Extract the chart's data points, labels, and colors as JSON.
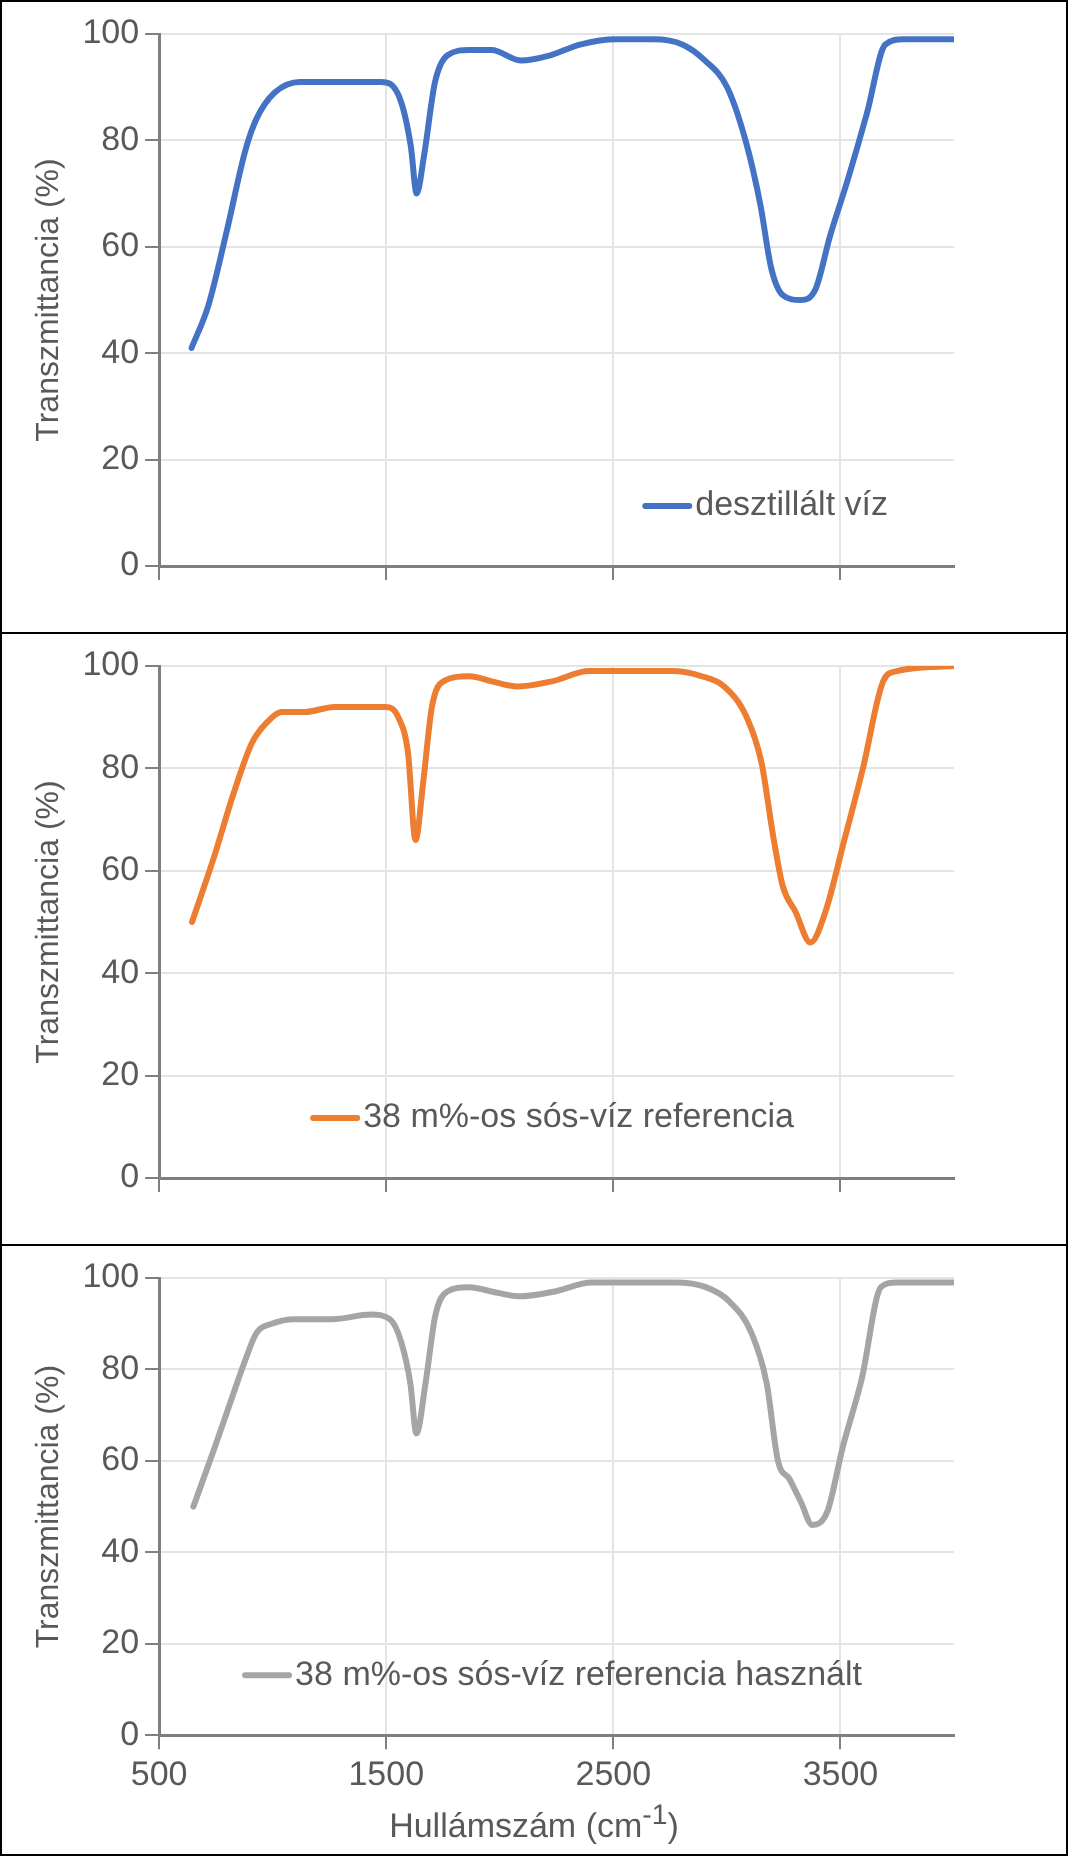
{
  "chart_data": [
    {
      "type": "line",
      "ylabel": "Transzmittancia (%)",
      "xlim": [
        500,
        4000
      ],
      "xticks": [
        {
          "value": 500,
          "label": null
        },
        {
          "value": 1500,
          "label": null
        },
        {
          "value": 2500,
          "label": null
        },
        {
          "value": 3500,
          "label": null
        }
      ],
      "ylim": [
        0,
        100
      ],
      "yticks": [
        0,
        20,
        40,
        60,
        80,
        100
      ],
      "grid": true,
      "legend": "bottom right",
      "tick_labels": "y",
      "series": [
        {
          "name": "desztillált víz",
          "color": "#4472c4",
          "x": [
            643,
            717,
            798,
            879,
            928,
            1009,
            1122,
            1381,
            1478,
            1559,
            1608,
            1634,
            1666,
            1715,
            1770,
            1867,
            1964,
            2094,
            2223,
            2353,
            2515,
            2677,
            2806,
            2904,
            3001,
            3082,
            3147,
            3195,
            3244,
            3325,
            3390,
            3454,
            3535,
            3616,
            3697,
            3778,
            3995
          ],
          "values": [
            41,
            49,
            63,
            78,
            84,
            89,
            91,
            91,
            91,
            88,
            79,
            70,
            77,
            91,
            96,
            97,
            97,
            95,
            96,
            98,
            99,
            99,
            98,
            95,
            90,
            80,
            68,
            56,
            51,
            50,
            52,
            62,
            73,
            85,
            98,
            99,
            99
          ]
        }
      ]
    },
    {
      "type": "line",
      "ylabel": "Transzmittancia (%)",
      "xlim": [
        500,
        4000
      ],
      "xticks": [
        {
          "value": 500,
          "label": null
        },
        {
          "value": 1500,
          "label": null
        },
        {
          "value": 2500,
          "label": null
        },
        {
          "value": 3500,
          "label": null
        }
      ],
      "ylim": [
        0,
        100
      ],
      "yticks": [
        0,
        20,
        40,
        60,
        80,
        100
      ],
      "grid": true,
      "legend": "bottom",
      "tick_labels": "y",
      "series": [
        {
          "name": "38 m%-os sós-víz referencia",
          "color": "#ed7d31",
          "x": [
            645,
            744,
            827,
            909,
            975,
            1041,
            1140,
            1272,
            1404,
            1497,
            1553,
            1596,
            1629,
            1662,
            1701,
            1751,
            1866,
            1965,
            2081,
            2229,
            2394,
            2559,
            2757,
            2889,
            2988,
            3087,
            3153,
            3203,
            3246,
            3302,
            3368,
            3434,
            3517,
            3599,
            3688,
            3748,
            4000
          ],
          "values": [
            50,
            63,
            75,
            85,
            89,
            91,
            91,
            92,
            92,
            92,
            90,
            83,
            66,
            77,
            92,
            97,
            98,
            97,
            96,
            97,
            99,
            99,
            99,
            98,
            96,
            90,
            81,
            67,
            57,
            52,
            46,
            52,
            66,
            80,
            97,
            99,
            100
          ]
        }
      ]
    },
    {
      "type": "line",
      "xlabel": "Hullámszám (cm$^{-1}$)",
      "ylabel": "Transzmittancia (%)",
      "xlim": [
        500,
        4000
      ],
      "xticks": [
        500,
        1500,
        2500,
        3500
      ],
      "ylim": [
        0,
        100
      ],
      "yticks": [
        0,
        20,
        40,
        60,
        80,
        100
      ],
      "grid": true,
      "legend": "bottom",
      "series": [
        {
          "name": "38 m%-os sós-víz referencia használt",
          "color": "#a5a5a5",
          "x": [
            651,
            745,
            829,
            879,
            929,
            996,
            1097,
            1264,
            1432,
            1516,
            1566,
            1606,
            1633,
            1673,
            1717,
            1767,
            1868,
            1968,
            2086,
            2236,
            2404,
            2572,
            2773,
            2907,
            3008,
            3108,
            3175,
            3225,
            3276,
            3326,
            3376,
            3443,
            3510,
            3594,
            3678,
            3745,
            4000
          ],
          "values": [
            50,
            63,
            75,
            82,
            88,
            90,
            91,
            91,
            92,
            91,
            86,
            77,
            66,
            77,
            92,
            97,
            98,
            97,
            96,
            97,
            99,
            99,
            99,
            98,
            95,
            88,
            77,
            60,
            56,
            51,
            46,
            49,
            63,
            78,
            98,
            99,
            99
          ]
        }
      ]
    }
  ]
}
